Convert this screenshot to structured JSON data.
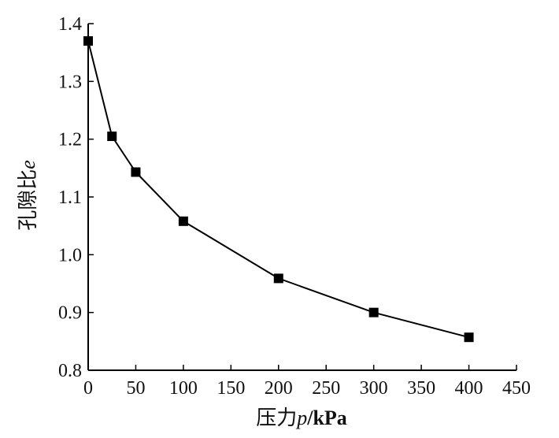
{
  "chart_data": {
    "type": "line",
    "title": "",
    "xlabel_parts": {
      "prefix": "压力",
      "var": "p",
      "unit": "/kPa"
    },
    "ylabel_parts": {
      "prefix": "孔隙比",
      "var": "e"
    },
    "xlim": [
      0,
      450
    ],
    "ylim": [
      0.8,
      1.4
    ],
    "xticks": [
      0,
      50,
      100,
      150,
      200,
      250,
      300,
      350,
      400,
      450
    ],
    "yticks": [
      0.8,
      0.9,
      1.0,
      1.1,
      1.2,
      1.3,
      1.4
    ],
    "yticks_format": 1,
    "grid": false,
    "legend": "none",
    "marker": "square",
    "color": "#000000",
    "series": [
      {
        "x": [
          0,
          25,
          50,
          100,
          200,
          300,
          400
        ],
        "y": [
          1.37,
          1.205,
          1.143,
          1.058,
          0.959,
          0.9,
          0.857
        ]
      }
    ]
  }
}
